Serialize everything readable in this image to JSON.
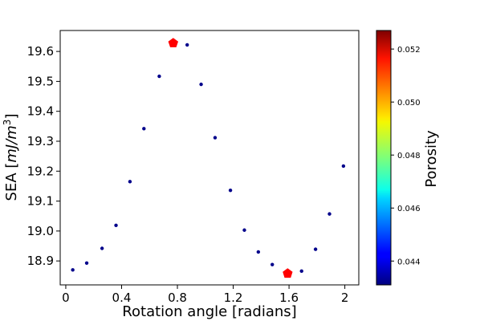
{
  "chart_data": {
    "type": "scatter",
    "title": "",
    "xlabel": "Rotation angle [radians]",
    "ylabel": {
      "text": "SEA [",
      "italic": "mJ/m",
      "sup": "3",
      "close": "]"
    },
    "xlim": [
      -0.04,
      2.1
    ],
    "ylim": [
      18.82,
      19.67
    ],
    "xticks": [
      0,
      0.4,
      0.8,
      1.2,
      1.6,
      2.0
    ],
    "xtick_labels": [
      "0",
      "0.4",
      "0.8",
      "1.2",
      "1.6",
      "2"
    ],
    "yticks": [
      18.9,
      19.0,
      19.1,
      19.2,
      19.3,
      19.4,
      19.5,
      19.6
    ],
    "ytick_labels": [
      "18.9",
      "19.0",
      "19.1",
      "19.2",
      "19.3",
      "19.4",
      "19.5",
      "19.6"
    ],
    "points": [
      {
        "x": 0.05,
        "y": 18.87
      },
      {
        "x": 0.15,
        "y": 18.893
      },
      {
        "x": 0.26,
        "y": 18.942
      },
      {
        "x": 0.36,
        "y": 19.019
      },
      {
        "x": 0.46,
        "y": 19.165
      },
      {
        "x": 0.56,
        "y": 19.342
      },
      {
        "x": 0.67,
        "y": 19.517
      },
      {
        "x": 0.87,
        "y": 19.622
      },
      {
        "x": 0.97,
        "y": 19.49
      },
      {
        "x": 1.07,
        "y": 19.312
      },
      {
        "x": 1.18,
        "y": 19.136
      },
      {
        "x": 1.28,
        "y": 19.003
      },
      {
        "x": 1.38,
        "y": 18.93
      },
      {
        "x": 1.48,
        "y": 18.888
      },
      {
        "x": 1.69,
        "y": 18.866
      },
      {
        "x": 1.79,
        "y": 18.939
      },
      {
        "x": 1.89,
        "y": 19.057
      },
      {
        "x": 1.99,
        "y": 19.217
      }
    ],
    "highlights": [
      {
        "x": 0.77,
        "y": 19.628,
        "marker": "pentagon",
        "color": "#ff0000"
      },
      {
        "x": 1.59,
        "y": 18.858,
        "marker": "pentagon",
        "color": "#ff0000"
      }
    ],
    "point_color": "#00008b",
    "colorbar": {
      "label": "Porosity",
      "colormap": "jet",
      "range": [
        0.0431,
        0.0527
      ],
      "ticks": [
        0.044,
        0.046,
        0.048,
        0.05,
        0.052
      ],
      "tick_labels": [
        "0.044",
        "0.046",
        "0.048",
        "0.050",
        "0.052"
      ]
    },
    "grid": false
  }
}
